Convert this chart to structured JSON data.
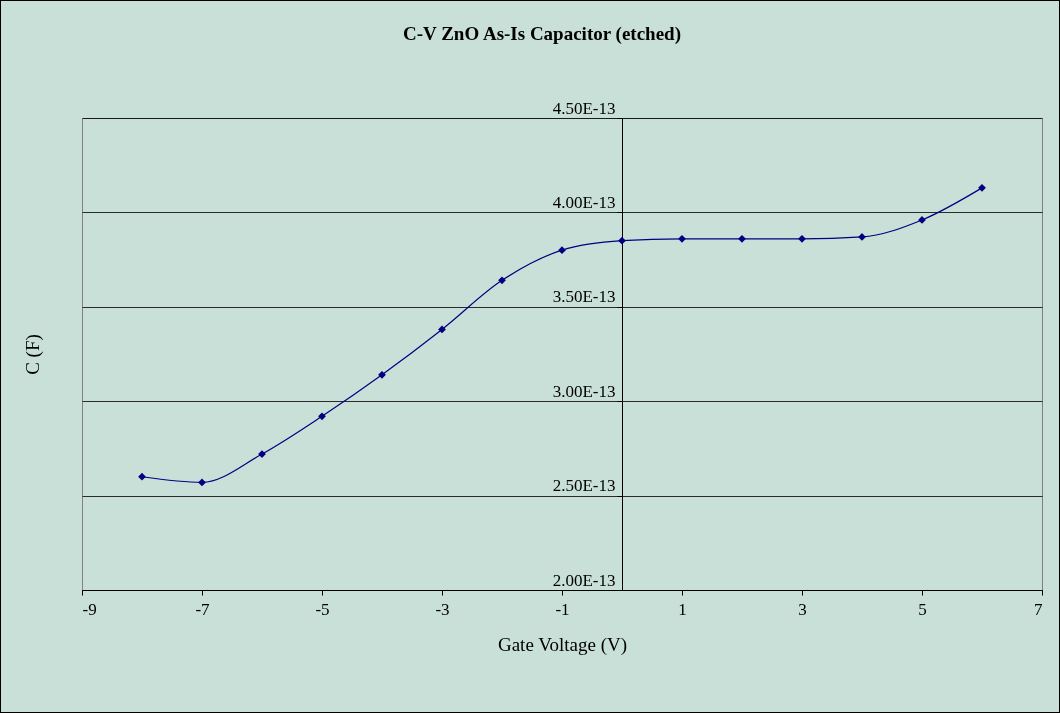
{
  "chart_data": {
    "type": "line",
    "title": "C-V ZnO As-Is Capacitor (etched)",
    "xlabel": "Gate Voltage (V)",
    "ylabel": "C (F)",
    "x": [
      -8,
      -7,
      -6,
      -5,
      -4,
      -3,
      -2,
      -1,
      0,
      1,
      2,
      3,
      4,
      5,
      6
    ],
    "values": [
      2.6e-13,
      2.57e-13,
      2.72e-13,
      2.92e-13,
      3.14e-13,
      3.38e-13,
      3.64e-13,
      3.8e-13,
      3.85e-13,
      3.86e-13,
      3.86e-13,
      3.86e-13,
      3.87e-13,
      3.96e-13,
      4.13e-13
    ],
    "color": "#000080",
    "marker": "diamond",
    "grid": "y",
    "xlim": [
      -9,
      7
    ],
    "xticks": [
      -9,
      -7,
      -5,
      -3,
      -1,
      1,
      3,
      5,
      7
    ],
    "ylim": [
      2e-13,
      4.5e-13
    ],
    "yticks": [
      {
        "value": 2e-13,
        "label": "2.00E-13"
      },
      {
        "value": 2.5e-13,
        "label": "2.50E-13"
      },
      {
        "value": 3e-13,
        "label": "3.00E-13"
      },
      {
        "value": 3.5e-13,
        "label": "3.50E-13"
      },
      {
        "value": 4e-13,
        "label": "4.00E-13"
      },
      {
        "value": 4.5e-13,
        "label": "4.50E-13"
      }
    ]
  }
}
